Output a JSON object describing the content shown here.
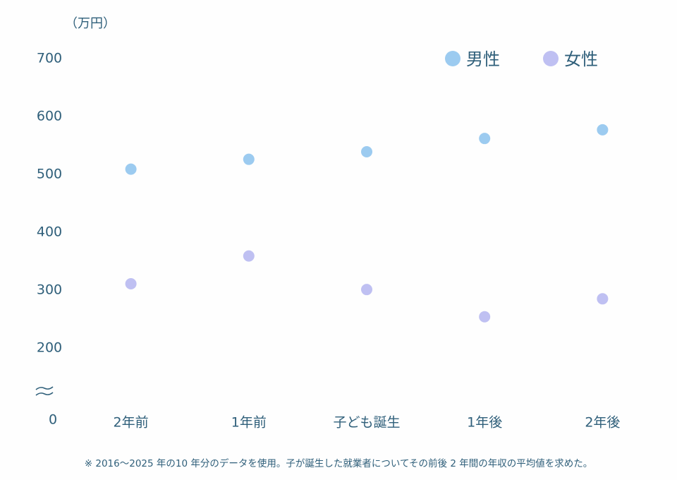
{
  "chart_data": {
    "type": "scatter",
    "y_label": "（万円）",
    "categories": [
      "2年前",
      "1年前",
      "子ども誕生",
      "1年後",
      "2年後"
    ],
    "series": [
      {
        "name": "男性",
        "color": "#9ccbf0",
        "values": [
          509,
          526,
          539,
          562,
          577
        ]
      },
      {
        "name": "女性",
        "color": "#bfc0f2",
        "values": [
          311,
          359,
          301,
          254,
          285
        ]
      }
    ],
    "ylim": [
      0,
      700
    ],
    "axis_break": [
      0,
      200
    ],
    "yticks": [
      0,
      200,
      300,
      400,
      500,
      600,
      700
    ],
    "legend": "top-right",
    "footnote": "※ 2016～2025 年の10 年分のデータを使用。子が誕生した就業者についてその前後 2 年間の年収の平均値を求めた。"
  }
}
